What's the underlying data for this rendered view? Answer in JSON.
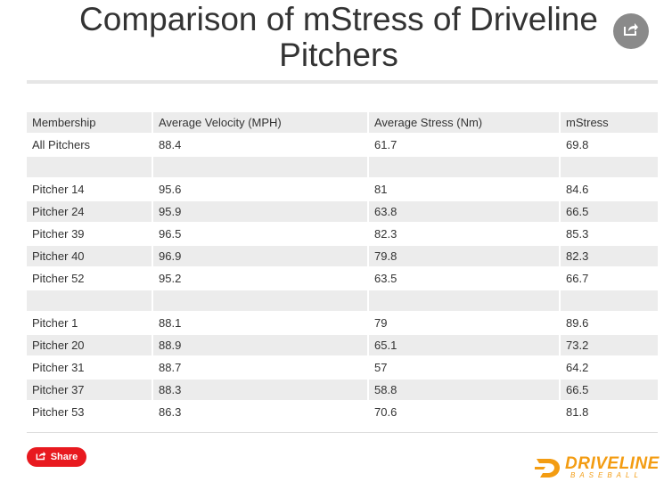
{
  "title": "Comparison of mStress of Driveline Pitchers",
  "header_share_icon": "share-icon",
  "footer": {
    "share_label": "Share",
    "logo_word": "DRIVELINE",
    "logo_sub": "BASEBALL"
  },
  "colors": {
    "share_button": "#e8191f",
    "logo": "#f39c12",
    "row_shade": "#ececec"
  },
  "chart_data": {
    "type": "table",
    "columns": [
      "Membership",
      "Average Velocity (MPH)",
      "Average Stress (Nm)",
      "mStress"
    ],
    "rows": [
      [
        "All Pitchers",
        "88.4",
        "61.7",
        "69.8"
      ],
      [
        "",
        "",
        "",
        ""
      ],
      [
        "Pitcher 14",
        "95.6",
        "81",
        "84.6"
      ],
      [
        "Pitcher 24",
        "95.9",
        "63.8",
        "66.5"
      ],
      [
        "Pitcher 39",
        "96.5",
        "82.3",
        "85.3"
      ],
      [
        "Pitcher 40",
        "96.9",
        "79.8",
        "82.3"
      ],
      [
        "Pitcher 52",
        "95.2",
        "63.5",
        "66.7"
      ],
      [
        "",
        "",
        "",
        ""
      ],
      [
        "Pitcher 1",
        "88.1",
        "79",
        "89.6"
      ],
      [
        "Pitcher 20",
        "88.9",
        "65.1",
        "73.2"
      ],
      [
        "Pitcher 31",
        "88.7",
        "57",
        "64.2"
      ],
      [
        "Pitcher 37",
        "88.3",
        "58.8",
        "66.5"
      ],
      [
        "Pitcher 53",
        "86.3",
        "70.6",
        "81.8"
      ]
    ]
  }
}
